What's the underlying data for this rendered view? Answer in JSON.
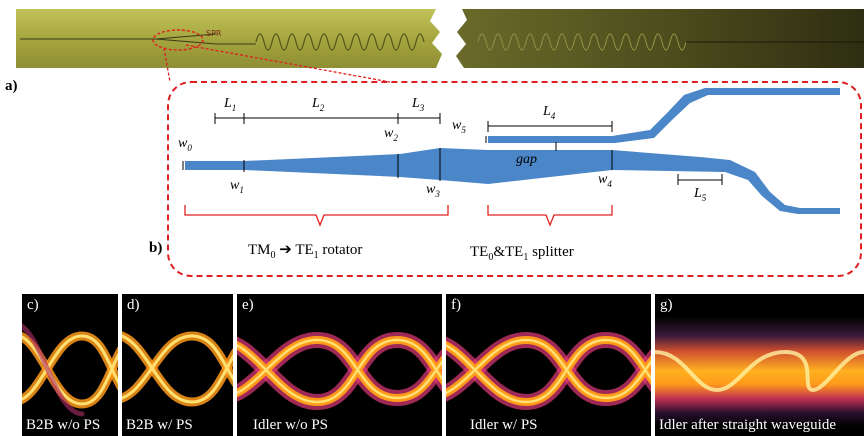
{
  "panels": {
    "a": "a)",
    "b": "b)",
    "c": "c)",
    "d": "d)",
    "e": "e)",
    "f": "f)",
    "g": "g)"
  },
  "chip_photo": {
    "colors": {
      "gold": "#a8a84a",
      "dark_gold": "#5a5a24",
      "highlight": "#e02020"
    }
  },
  "schematic": {
    "dims": {
      "L1": "L",
      "L1_sub": "1",
      "L2": "L",
      "L2_sub": "2",
      "L3": "L",
      "L3_sub": "3",
      "L4": "L",
      "L4_sub": "4",
      "L5": "L",
      "L5_sub": "5",
      "w0": "w",
      "w0_sub": "0",
      "w1": "w",
      "w1_sub": "1",
      "w2": "w",
      "w2_sub": "2",
      "w3": "w",
      "w3_sub": "3",
      "w4": "w",
      "w4_sub": "4",
      "w5": "w",
      "w5_sub": "5",
      "gap": "gap"
    },
    "rotator": {
      "tm": "TM",
      "tm_sub": "0",
      "arrow": "➔",
      "te": "TE",
      "te_sub": "1",
      "suffix": "rotator"
    },
    "splitter": {
      "te0": "TE",
      "te0_sub": "0",
      "amp": "&",
      "te1": "TE",
      "te1_sub": "1",
      "suffix": "splitter"
    },
    "colors": {
      "waveguide": "#4a86c8",
      "border": "#e02020"
    }
  },
  "eyes": [
    {
      "letter": "c)",
      "caption": "B2B w/o PS"
    },
    {
      "letter": "d)",
      "caption": "B2B w/ PS"
    },
    {
      "letter": "e)",
      "caption": "Idler w/o PS"
    },
    {
      "letter": "f)",
      "caption": "Idler w/ PS"
    },
    {
      "letter": "g)",
      "caption": "Idler after straight waveguide"
    }
  ]
}
